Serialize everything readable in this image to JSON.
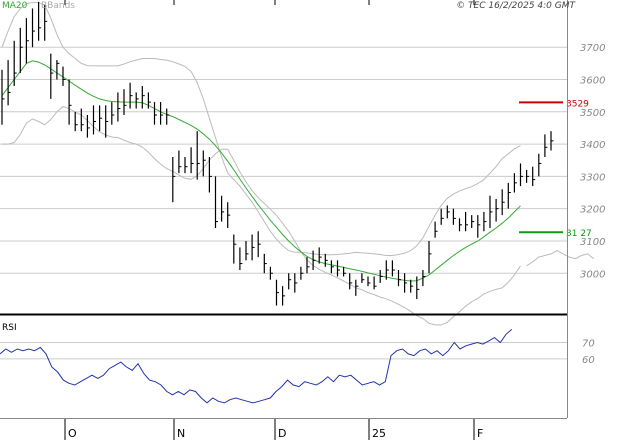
{
  "header": {
    "ma_label": "MA20",
    "bbands_label": "BBands",
    "copyright": "© TEC 16/2/2025 4:0 GMT"
  },
  "rsi_label": "RSI",
  "colors": {
    "price_bars": "#000000",
    "ma20": "#33aa33",
    "bbands": "#bbbbbb",
    "rsi_line": "#2233aa",
    "resistance": "#cc0000",
    "support": "#119911",
    "grid": "#cccccc",
    "axis_text": "#888888"
  },
  "chart_data": [
    {
      "type": "ohlc",
      "name": "price",
      "x_ticks": [
        "O",
        "N",
        "D",
        "25",
        "F"
      ],
      "y_ticks": [
        3000,
        3100,
        3200,
        3300,
        3400,
        3500,
        3600,
        3700
      ],
      "ylim": [
        2880,
        3840
      ],
      "annotations": [
        {
          "label": "3529",
          "value": 3529,
          "color": "#cc0000"
        },
        {
          "label": "31 27",
          "value": 3127,
          "color": "#119911"
        }
      ],
      "series": [
        {
          "name": "MA20",
          "values": [
            3550,
            3575,
            3600,
            3625,
            3650,
            3658,
            3654,
            3645,
            3633,
            3620,
            3608,
            3595,
            3582,
            3570,
            3558,
            3548,
            3540,
            3535,
            3532,
            3531,
            3530,
            3530,
            3530,
            3528,
            3520,
            3510,
            3500,
            3492,
            3485,
            3476,
            3467,
            3458,
            3446,
            3432,
            3415,
            3395,
            3372,
            3347,
            3320,
            3292,
            3264,
            3238,
            3212,
            3188,
            3164,
            3142,
            3120,
            3100,
            3082,
            3066,
            3052,
            3042,
            3035,
            3030,
            3026,
            3022,
            3018,
            3014,
            3010,
            3006,
            3001,
            2997,
            2992,
            2988,
            2984,
            2981,
            2978,
            2976,
            2977,
            2985,
            2995,
            3010,
            3025,
            3040,
            3055,
            3068,
            3080,
            3090,
            3100,
            3113,
            3127,
            3140,
            3155,
            3171,
            3190,
            3209
          ]
        },
        {
          "name": "BBands upper",
          "values": [
            3700,
            3750,
            3795,
            3820,
            3835,
            3838,
            3838,
            3830,
            3790,
            3740,
            3700,
            3680,
            3665,
            3650,
            3643,
            3642,
            3642,
            3642,
            3642,
            3642,
            3648,
            3655,
            3660,
            3665,
            3665,
            3665,
            3662,
            3660,
            3655,
            3648,
            3640,
            3625,
            3590,
            3540,
            3480,
            3420,
            3360,
            3310,
            3290,
            3270,
            3245,
            3220,
            3190,
            3160,
            3130,
            3105,
            3085,
            3070,
            3065,
            3065,
            3063,
            3060,
            3058,
            3057,
            3057,
            3058,
            3060,
            3062,
            3065,
            3063,
            3062,
            3060,
            3058,
            3055,
            3055,
            3058,
            3062,
            3070,
            3085,
            3110,
            3145,
            3180,
            3210,
            3232,
            3245,
            3255,
            3262,
            3268,
            3278,
            3290,
            3310,
            3330,
            3355,
            3370,
            3385,
            3395
          ]
        },
        {
          "name": "BBands lower",
          "values": [
            3400,
            3400,
            3405,
            3430,
            3465,
            3478,
            3470,
            3460,
            3476,
            3500,
            3516,
            3510,
            3499,
            3490,
            3473,
            3454,
            3438,
            3428,
            3422,
            3420,
            3412,
            3405,
            3400,
            3391,
            3375,
            3355,
            3338,
            3324,
            3315,
            3304,
            3294,
            3291,
            3302,
            3324,
            3350,
            3370,
            3384,
            3384,
            3350,
            3314,
            3283,
            3256,
            3234,
            3216,
            3198,
            3179,
            3155,
            3130,
            3099,
            3067,
            3041,
            3024,
            3012,
            3003,
            2995,
            2986,
            2976,
            2966,
            2955,
            2949,
            2940,
            2934,
            2926,
            2921,
            2913,
            2904,
            2894,
            2882,
            2869,
            2860,
            2845,
            2840,
            2840,
            2848,
            2865,
            2881,
            2898,
            2912,
            2922,
            2936,
            2944,
            2950,
            2955,
            2972,
            2995,
            3023
          ]
        },
        {
          "name": "BBands lower tail",
          "values": [
            3023,
            3035,
            3050,
            3055,
            3060,
            3070,
            3060,
            3050,
            3045,
            3055,
            3060,
            3045
          ]
        }
      ],
      "bars": [
        [
          3460,
          3540,
          3630
        ],
        [
          3520,
          3560,
          3660
        ],
        [
          3580,
          3620,
          3720
        ],
        [
          3620,
          3700,
          3760
        ],
        [
          3650,
          3720,
          3790
        ],
        [
          3700,
          3750,
          3820
        ],
        [
          3720,
          3760,
          3840
        ],
        [
          3720,
          3780,
          3830
        ],
        [
          3540,
          3620,
          3680
        ],
        [
          3600,
          3650,
          3660
        ],
        [
          3580,
          3600,
          3640
        ],
        [
          3460,
          3520,
          3600
        ],
        [
          3440,
          3460,
          3500
        ],
        [
          3440,
          3460,
          3510
        ],
        [
          3420,
          3450,
          3490
        ],
        [
          3430,
          3470,
          3520
        ],
        [
          3440,
          3480,
          3520
        ],
        [
          3420,
          3470,
          3520
        ],
        [
          3460,
          3490,
          3530
        ],
        [
          3470,
          3510,
          3560
        ],
        [
          3490,
          3520,
          3570
        ],
        [
          3510,
          3550,
          3590
        ],
        [
          3510,
          3540,
          3560
        ],
        [
          3510,
          3550,
          3580
        ],
        [
          3510,
          3530,
          3560
        ],
        [
          3460,
          3490,
          3530
        ],
        [
          3460,
          3490,
          3530
        ],
        [
          3460,
          3490,
          3510
        ],
        [
          3220,
          3300,
          3360
        ],
        [
          3310,
          3330,
          3380
        ],
        [
          3310,
          3330,
          3360
        ],
        [
          3310,
          3340,
          3390
        ],
        [
          3290,
          3340,
          3440
        ],
        [
          3300,
          3350,
          3380
        ],
        [
          3250,
          3300,
          3360
        ],
        [
          3140,
          3160,
          3300
        ],
        [
          3160,
          3190,
          3240
        ],
        [
          3140,
          3180,
          3220
        ],
        [
          3030,
          3090,
          3120
        ],
        [
          3010,
          3030,
          3080
        ],
        [
          3040,
          3060,
          3100
        ],
        [
          3040,
          3080,
          3120
        ],
        [
          3050,
          3090,
          3130
        ],
        [
          3000,
          3030,
          3060
        ],
        [
          2980,
          3000,
          3020
        ],
        [
          2900,
          2940,
          2980
        ],
        [
          2900,
          2930,
          2960
        ],
        [
          2950,
          2980,
          3000
        ],
        [
          2940,
          2970,
          3000
        ],
        [
          2980,
          3000,
          3020
        ],
        [
          3000,
          3020,
          3050
        ],
        [
          3010,
          3040,
          3070
        ],
        [
          3030,
          3050,
          3080
        ],
        [
          3020,
          3040,
          3060
        ],
        [
          3000,
          3020,
          3040
        ],
        [
          2990,
          3010,
          3040
        ],
        [
          2990,
          3000,
          3020
        ],
        [
          2950,
          2970,
          3000
        ],
        [
          2930,
          2960,
          2980
        ],
        [
          2970,
          2980,
          3000
        ],
        [
          2960,
          2970,
          2990
        ],
        [
          2950,
          2960,
          2990
        ],
        [
          2970,
          2990,
          3010
        ],
        [
          2980,
          3010,
          3040
        ],
        [
          2990,
          3010,
          3040
        ],
        [
          2960,
          2980,
          3010
        ],
        [
          2940,
          2970,
          3000
        ],
        [
          2940,
          2960,
          2980
        ],
        [
          2920,
          2950,
          2990
        ],
        [
          2960,
          2990,
          3010
        ],
        [
          3000,
          3060,
          3100
        ],
        [
          3110,
          3130,
          3160
        ],
        [
          3150,
          3170,
          3200
        ],
        [
          3170,
          3190,
          3210
        ],
        [
          3150,
          3170,
          3200
        ],
        [
          3130,
          3150,
          3170
        ],
        [
          3130,
          3150,
          3190
        ],
        [
          3140,
          3160,
          3180
        ],
        [
          3110,
          3150,
          3180
        ],
        [
          3130,
          3160,
          3190
        ],
        [
          3140,
          3190,
          3240
        ],
        [
          3160,
          3200,
          3230
        ],
        [
          3180,
          3220,
          3260
        ],
        [
          3200,
          3250,
          3280
        ],
        [
          3250,
          3280,
          3310
        ],
        [
          3270,
          3300,
          3340
        ],
        [
          3280,
          3300,
          3320
        ],
        [
          3270,
          3290,
          3330
        ],
        [
          3300,
          3340,
          3370
        ],
        [
          3360,
          3390,
          3430
        ],
        [
          3380,
          3410,
          3440
        ]
      ]
    },
    {
      "type": "line",
      "name": "RSI",
      "y_ticks": [
        60,
        70
      ],
      "ylim": [
        25,
        85
      ],
      "values": [
        63,
        66,
        64,
        66,
        65,
        66,
        65,
        67,
        63,
        55,
        52,
        47,
        45,
        44,
        46,
        48,
        50,
        48,
        50,
        54,
        56,
        58,
        55,
        53,
        57,
        51,
        47,
        46,
        44,
        40,
        38,
        40,
        38,
        41,
        40,
        36,
        33,
        36,
        34,
        33,
        35,
        36,
        35,
        34,
        33,
        34,
        35,
        36,
        40,
        43,
        47,
        44,
        43,
        46,
        45,
        44,
        46,
        49,
        46,
        50,
        49,
        50,
        47,
        44,
        45,
        46,
        44,
        46,
        62,
        65,
        66,
        63,
        62,
        65,
        66,
        63,
        65,
        62,
        65,
        70,
        66,
        68,
        69,
        70,
        69,
        71,
        73,
        70,
        75,
        78
      ]
    }
  ]
}
